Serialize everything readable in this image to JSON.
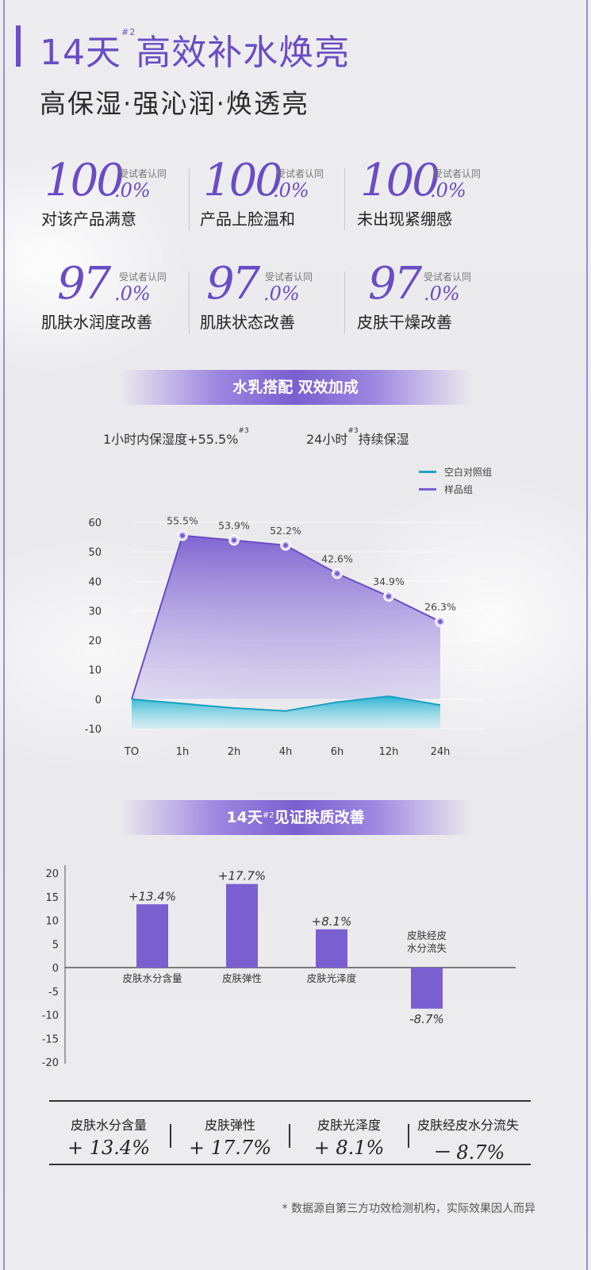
{
  "header": {
    "title_prefix": "14天",
    "title_sup": "#2",
    "title_main": "高效补水焕亮",
    "subtitle": "高保湿·强沁润·焕透亮"
  },
  "stats": [
    {
      "big": "100",
      "decimal": ".0%",
      "note": "受试者认同",
      "label": "对该产品满意"
    },
    {
      "big": "100",
      "decimal": ".0%",
      "note": "受试者认同",
      "label": "产品上脸温和"
    },
    {
      "big": "100",
      "decimal": ".0%",
      "note": "受试者认同",
      "label": "未出现紧绷感"
    },
    {
      "big": "97",
      "decimal": ".0%",
      "note": "受试者认同",
      "label": "肌肤水润度改善"
    },
    {
      "big": "97",
      "decimal": ".0%",
      "note": "受试者认同",
      "label": "肌肤状态改善"
    },
    {
      "big": "97",
      "decimal": ".0%",
      "note": "受试者认同",
      "label": "皮肤干燥改善"
    }
  ],
  "section1": {
    "pill": "水乳搭配 双效加成",
    "claim_left": "1小时内保湿度+55.5%",
    "claim_left_sup": "#3",
    "claim_right_prefix": "24小时",
    "claim_right_sup": "#3",
    "claim_right_suffix": "持续保湿"
  },
  "section2": {
    "pill_prefix": "14天",
    "pill_sup": "#2",
    "pill_suffix": "见证肤质改善"
  },
  "chart_data": [
    {
      "type": "area",
      "categories": [
        "TO",
        "1h",
        "2h",
        "4h",
        "6h",
        "12h",
        "24h"
      ],
      "series": [
        {
          "name": "空白对照组",
          "color": "#1fa2c2",
          "values": [
            0,
            -1.5,
            -3,
            -4,
            -1,
            1,
            -2
          ]
        },
        {
          "name": "样品组",
          "color": "#7a5fd0",
          "values": [
            0,
            55.5,
            53.9,
            52.2,
            42.6,
            34.9,
            26.3
          ],
          "labels": [
            "",
            "55.5%",
            "53.9%",
            "52.2%",
            "42.6%",
            "34.9%",
            "26.3%"
          ]
        }
      ],
      "yticks": [
        60,
        50,
        40,
        30,
        20,
        10,
        0,
        -10
      ],
      "ylim": [
        -10,
        60
      ],
      "legend": "top-right"
    },
    {
      "type": "bar",
      "categories": [
        "皮肤水分含量",
        "皮肤弹性",
        "皮肤光泽度",
        "皮肤经皮水分流失"
      ],
      "category_lines": [
        [
          "皮肤水分含量"
        ],
        [
          "皮肤弹性"
        ],
        [
          "皮肤光泽度"
        ],
        [
          "皮肤经皮",
          "水分流失"
        ]
      ],
      "values": [
        13.4,
        17.7,
        8.1,
        -8.7
      ],
      "value_labels": [
        "+13.4%",
        "+17.7%",
        "+8.1%",
        "-8.7%"
      ],
      "yticks": [
        20,
        15,
        10,
        5,
        0,
        -5,
        -10,
        -15,
        -20
      ],
      "ylim": [
        -20,
        20
      ],
      "color": "#7a5fd0"
    }
  ],
  "summary": [
    {
      "label": "皮肤水分含量",
      "sign": "+",
      "value": "13.4%"
    },
    {
      "label": "皮肤弹性",
      "sign": "+",
      "value": "17.7%"
    },
    {
      "label": "皮肤光泽度",
      "sign": "+",
      "value": "8.1%"
    },
    {
      "label": "皮肤经皮水分流失",
      "sign": "－",
      "value": "8.7%"
    }
  ],
  "footnote": "* 数据源自第三方功效检测机构，实际效果因人而异"
}
